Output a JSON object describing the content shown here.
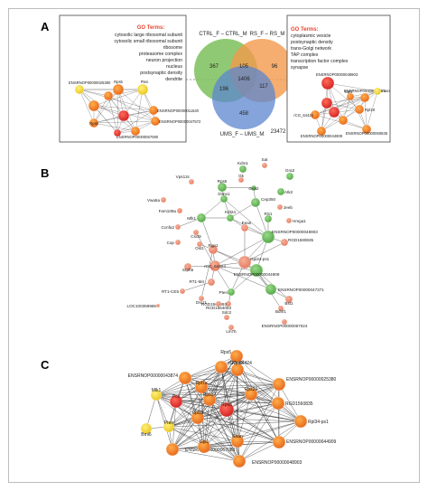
{
  "panels": {
    "a": "A",
    "b": "B",
    "c": "C"
  },
  "panel_a": {
    "left_box": {
      "go_title": "GO Terms:",
      "go_terms": [
        "cytosolic large ribosomal subunit",
        "cytosolic small ribosomal subunit",
        "ribosome",
        "proteasome complex",
        "neuron projection",
        "nucleus",
        "postsynaptic density",
        "dendrite"
      ],
      "network_labels": [
        "ENSRNOP00000025380",
        "Rps5",
        "Pten",
        "ENSRNOP00000011540",
        "ENSRNOP00000047572",
        "ENSRNOP00000067080",
        "Rps6"
      ]
    },
    "venn": {
      "set_labels": [
        "CTRL_F – CTRL_M",
        "RS_F – RS_M",
        "UMS_F – UMS_M"
      ],
      "regions": {
        "ctrl_only": "367",
        "rs_only": "96",
        "ums_only": "458",
        "ctrl_rs": "105",
        "ctrl_ums": "196",
        "rs_ums": "117",
        "all": "1406",
        "outside": "23472"
      },
      "colors": {
        "ctrl": "#7dbf5a",
        "rs": "#f39a4c",
        "ums": "#5b86cf"
      }
    },
    "right_box": {
      "go_title": "GO Terms:",
      "go_terms": [
        "cytoplasmic vesicle",
        "postsynaptic density",
        "trans-Golgi network",
        "TAP complex",
        "transcription factor complex",
        "synapse"
      ],
      "network_labels": [
        "ENSRNOP00000048903",
        "ENSRNOP00000047371",
        "Eean",
        "rCG_64424",
        "ENSRNOP00000044909",
        "ENSRNOP00000060835",
        "Rpl18",
        "Gpi4"
      ]
    }
  },
  "panel_b": {
    "labels": [
      "Kdm1",
      "Sat",
      "Gk",
      "Gra3",
      "Vps13c",
      "Rps5",
      "Grin2",
      "Atk2",
      "Vwa5a",
      "Dimo1",
      "Cep350",
      "Jeeb",
      "Fam109a",
      "Mlk1",
      "Kdt24",
      "RS1",
      "Hmga1",
      "Ccnfa2",
      "Cscl9",
      "Eean",
      "Cop",
      "Ost1",
      "ENSRNOP00000048903",
      "Rgp1",
      "RGD1560835",
      "Srph5",
      "rCG_64424",
      "Gpi34-ps1",
      "ENSRNOP00000044909",
      "RT1-M4",
      "Pten",
      "ENSRNOP00000047371",
      "RT1-CE5",
      "Dscr1",
      "LOC100359965",
      "Bst1",
      "RGD1564093",
      "RGD1564093",
      "Sdc2",
      "Lin7b",
      "ENSRNOP00000067024",
      "Bdnf1"
    ]
  },
  "panel_c": {
    "labels": [
      "Rps5",
      "rCG_64424",
      "ENSRNOP00000043874",
      "Rps8",
      "ENSRNOP00000025380",
      "Mlk1",
      "Rpl7a",
      "Rps17",
      "Rps20",
      "Pcs",
      "RGD1560835",
      "Pten",
      "Rpl34-ps1",
      "Bmi6",
      "Rpl13",
      "Rps3",
      "ENSRNOP00000044909",
      "ENSRNOP00000067080",
      "ENSRNOP00000048903",
      "Eean",
      "Gpi1"
    ]
  }
}
